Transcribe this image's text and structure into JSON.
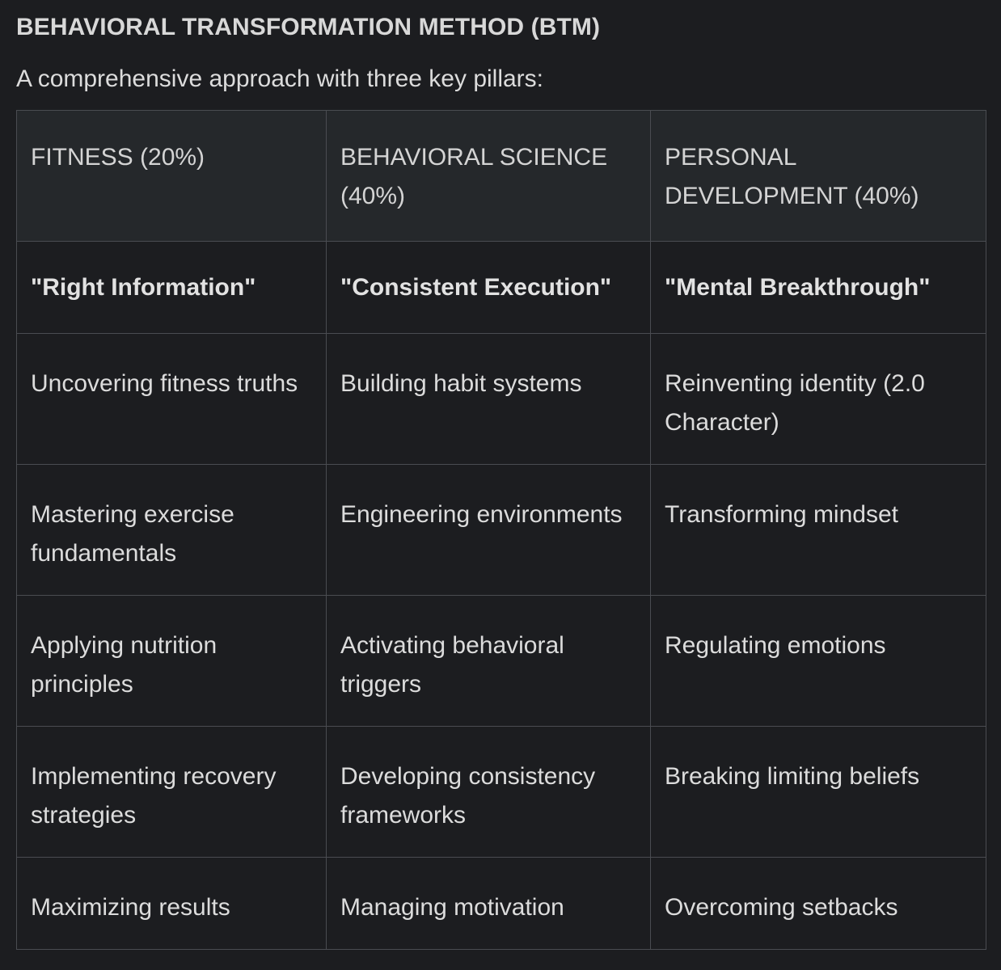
{
  "document": {
    "title": "BEHAVIORAL TRANSFORMATION METHOD (BTM)",
    "subtitle": "A comprehensive approach with three key pillars:"
  },
  "table": {
    "headers": [
      "FITNESS (20%)",
      "BEHAVIORAL SCIENCE (40%)",
      "PERSONAL DEVELOPMENT (40%)"
    ],
    "mottos": [
      "\"Right Information\"",
      "\"Consistent Execution\"",
      "\"Mental Breakthrough\""
    ],
    "rows": [
      [
        "Uncovering fitness truths",
        "Building habit systems",
        "Reinventing identity (2.0 Character)"
      ],
      [
        "Mastering exercise fundamentals",
        "Engineering environments",
        "Transforming mindset"
      ],
      [
        "Applying nutrition principles",
        "Activating behavioral triggers",
        "Regulating emotions"
      ],
      [
        "Implementing recovery strategies",
        "Developing consistency frameworks",
        "Breaking limiting beliefs"
      ],
      [
        "Maximizing results",
        "Managing motivation",
        "Overcoming setbacks"
      ]
    ]
  }
}
